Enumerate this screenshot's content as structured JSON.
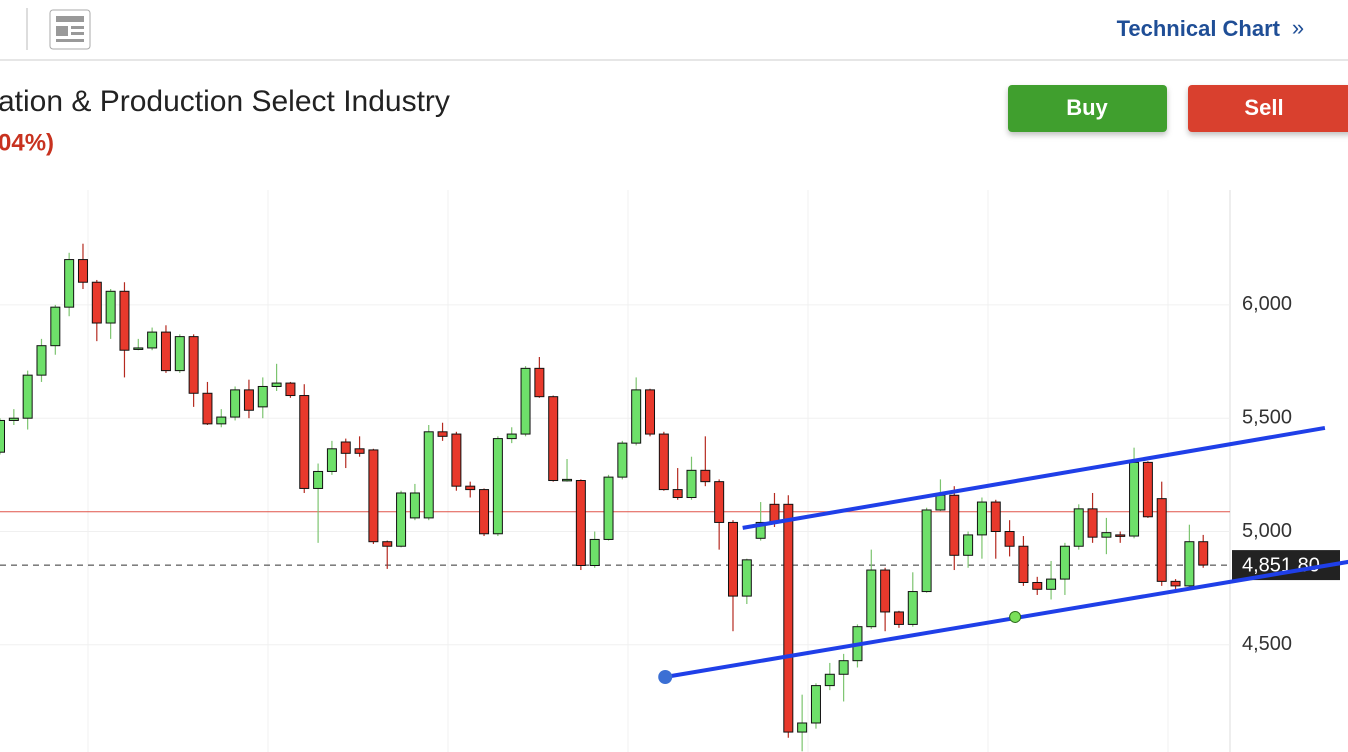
{
  "header": {
    "link": "Technical Chart",
    "link_arrow": "»",
    "title": "ation & Production Select Industry",
    "change": "04%)",
    "buy": "Buy",
    "sell": "Sell"
  },
  "chart_data": {
    "type": "candlestick",
    "open": [
      5350,
      5490,
      5500,
      5690,
      5820,
      5990,
      6200,
      6100,
      5920,
      6060,
      5805,
      5810,
      5880,
      5710,
      5860,
      5610,
      5475,
      5505,
      5625,
      5550,
      5640,
      5655,
      5600,
      5190,
      5265,
      5395,
      5365,
      5360,
      4955,
      4935,
      5060,
      5060,
      5440,
      5430,
      5200,
      5185,
      4990,
      5410,
      5430,
      5720,
      5595,
      5225,
      5225,
      4850,
      4965,
      5240,
      5390,
      5625,
      5430,
      5185,
      5150,
      5270,
      5220,
      5040,
      4715,
      4970,
      5120,
      5120,
      4115,
      4155,
      4320,
      4370,
      4430,
      4580,
      4830,
      4645,
      4590,
      4735,
      5095,
      5160,
      4895,
      4985,
      5130,
      5000,
      4935,
      4775,
      4745,
      4790,
      4935,
      5100,
      4975,
      4985,
      4980,
      5305,
      5145,
      4780,
      4760,
      4955
    ],
    "high": [
      5500,
      5540,
      5710,
      5850,
      6000,
      6230,
      6270,
      6110,
      6070,
      6100,
      5850,
      5900,
      5910,
      5870,
      5870,
      5660,
      5540,
      5640,
      5670,
      5680,
      5740,
      5660,
      5650,
      5300,
      5400,
      5410,
      5420,
      5365,
      4960,
      5180,
      5210,
      5470,
      5480,
      5440,
      5220,
      5190,
      5420,
      5460,
      5730,
      5770,
      5600,
      5320,
      5230,
      5000,
      5250,
      5400,
      5680,
      5630,
      5440,
      5280,
      5330,
      5420,
      5230,
      5050,
      4880,
      5130,
      5170,
      5160,
      4280,
      4330,
      4420,
      4460,
      4590,
      4920,
      4840,
      4650,
      4820,
      5105,
      5230,
      5200,
      5000,
      5150,
      5140,
      5050,
      4980,
      4800,
      4870,
      4950,
      5120,
      5170,
      5060,
      5000,
      5370,
      5310,
      5220,
      4790,
      5030,
      4985
    ],
    "low": [
      5340,
      5470,
      5450,
      5660,
      5780,
      5950,
      6070,
      5840,
      5850,
      5680,
      5800,
      5800,
      5700,
      5700,
      5550,
      5470,
      5460,
      5490,
      5500,
      5500,
      5620,
      5590,
      5170,
      4950,
      5250,
      5280,
      5330,
      4945,
      4835,
      4930,
      5050,
      5050,
      5400,
      5180,
      5150,
      4980,
      4980,
      5390,
      5420,
      5590,
      5220,
      5220,
      4830,
      4840,
      4960,
      5230,
      5380,
      5420,
      5180,
      5140,
      5140,
      5200,
      4920,
      4560,
      4680,
      4960,
      5020,
      4090,
      4030,
      4130,
      4300,
      4250,
      4400,
      4570,
      4560,
      4575,
      4580,
      4730,
      5090,
      4830,
      4840,
      4880,
      4880,
      4890,
      4760,
      4720,
      4700,
      4720,
      4920,
      4950,
      4900,
      4950,
      4970,
      5060,
      4760,
      4740,
      4750,
      4840
    ],
    "close": [
      5490,
      5500,
      5690,
      5820,
      5990,
      6200,
      6100,
      5920,
      6060,
      5800,
      5810,
      5880,
      5710,
      5860,
      5610,
      5475,
      5505,
      5625,
      5535,
      5640,
      5655,
      5600,
      5190,
      5265,
      5365,
      5345,
      5345,
      4955,
      4935,
      5170,
      5170,
      5440,
      5420,
      5200,
      5185,
      4990,
      5410,
      5430,
      5720,
      5595,
      5225,
      5230,
      4850,
      4965,
      5240,
      5390,
      5625,
      5430,
      5185,
      5150,
      5270,
      5220,
      5040,
      4715,
      4875,
      5040,
      5040,
      4115,
      4155,
      4320,
      4370,
      4430,
      4580,
      4830,
      4645,
      4590,
      4735,
      5095,
      5160,
      4895,
      4985,
      5130,
      5000,
      4935,
      4775,
      4745,
      4790,
      4935,
      5100,
      4975,
      4995,
      4980,
      5305,
      5065,
      4780,
      4760,
      4955,
      4852
    ],
    "up_color": "#6ee06a",
    "down_color": "#e8392c",
    "ylim": [
      4027,
      6507
    ],
    "yticks": [
      {
        "value": 4500,
        "label": "4,500"
      },
      {
        "value": 5000,
        "label": "5,000"
      },
      {
        "value": 5500,
        "label": "5,500"
      },
      {
        "value": 6000,
        "label": "6,000"
      }
    ],
    "grid": true,
    "reference_line": {
      "value": 5087,
      "color": "#e0554a"
    },
    "last_price": {
      "value": 4851.8,
      "label": "4,851.80"
    },
    "trendlines": [
      {
        "color": "#1f3fe8",
        "x": [
          53.7,
          95.8
        ],
        "y": [
          5016,
          5457
        ]
      },
      {
        "color": "#1f3fe8",
        "x": [
          48.1,
          97.5
        ],
        "y": [
          4358,
          4866
        ],
        "handle_x": 73.4,
        "handle_y": 4623
      }
    ]
  }
}
